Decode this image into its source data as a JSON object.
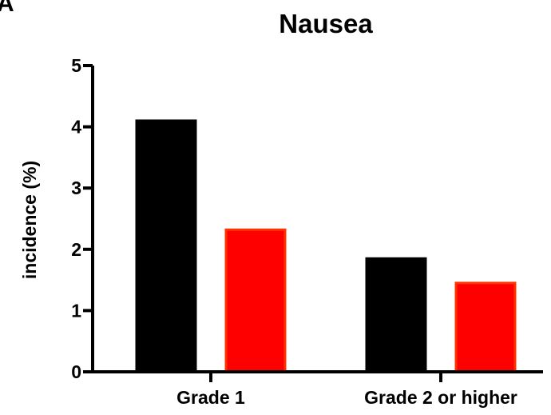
{
  "chart_data": {
    "type": "bar",
    "panel_label": "A",
    "title": "Nausea",
    "xlabel": "",
    "ylabel": "incidence (%)",
    "ylim": [
      0,
      5
    ],
    "yticks": [
      "0",
      "1",
      "2",
      "3",
      "4",
      "5"
    ],
    "categories": [
      "Grade 1",
      "Grade 2 or higher"
    ],
    "series": [
      {
        "values": [
          4.1,
          1.85
        ],
        "color": "#000000",
        "stroke": "#000000"
      },
      {
        "values": [
          2.32,
          1.45
        ],
        "color": "#ff0000",
        "stroke": "#ff3300"
      }
    ],
    "grid": false,
    "legend": "none"
  }
}
